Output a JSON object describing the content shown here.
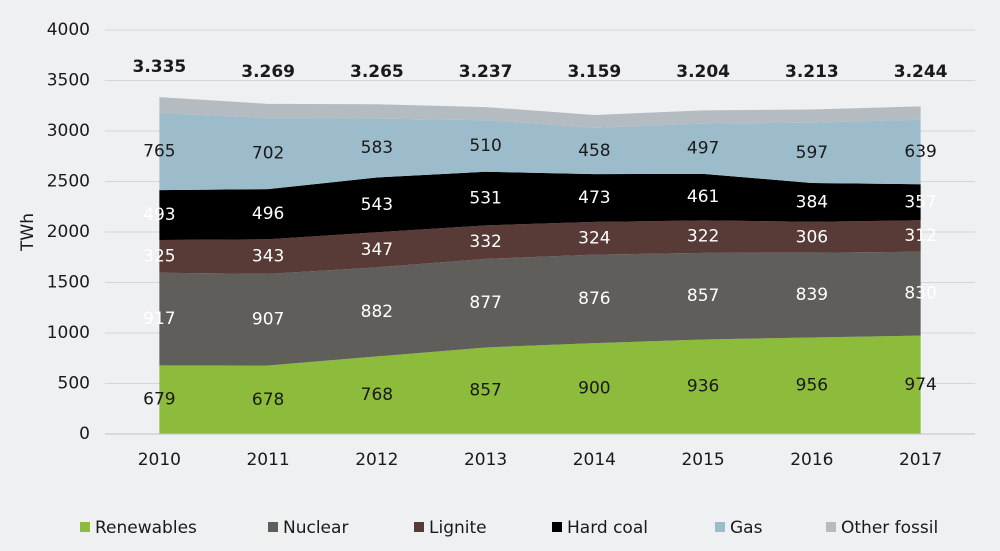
{
  "chart_data": {
    "type": "stacked_area",
    "y_label": "TWh",
    "categories": [
      "2010",
      "2011",
      "2012",
      "2013",
      "2014",
      "2015",
      "2016",
      "2017"
    ],
    "series": [
      {
        "name": "Renewables",
        "color": "#8dbb3c",
        "values": [
          679,
          678,
          768,
          857,
          900,
          936,
          956,
          974
        ]
      },
      {
        "name": "Nuclear",
        "color": "#5f5e5a",
        "values": [
          917,
          907,
          882,
          877,
          876,
          857,
          839,
          830
        ]
      },
      {
        "name": "Lignite",
        "color": "#583a36",
        "values": [
          325,
          343,
          347,
          332,
          324,
          322,
          306,
          312
        ]
      },
      {
        "name": "Hard coal",
        "color": "#000000",
        "values": [
          493,
          496,
          543,
          531,
          473,
          461,
          384,
          357
        ]
      },
      {
        "name": "Gas",
        "color": "#9dbccb",
        "values": [
          765,
          702,
          583,
          510,
          458,
          497,
          597,
          639
        ]
      },
      {
        "name": "Other fossil",
        "color": "#b4bcc2",
        "values": [
          156,
          143,
          142,
          130,
          128,
          131,
          131,
          132
        ]
      }
    ],
    "labeled_series": [
      0,
      1,
      2,
      3,
      4
    ],
    "totals": {
      "values": [
        3335,
        3269,
        3265,
        3237,
        3159,
        3204,
        3213,
        3244
      ],
      "value_labels": [
        "3.335",
        "3.269",
        "3.265",
        "3.237",
        "3.159",
        "3.204",
        "3.213",
        "3.244"
      ]
    },
    "ylim": [
      0,
      4000
    ],
    "yticks": [
      0,
      500,
      1000,
      1500,
      2000,
      2500,
      3000,
      3500,
      4000
    ],
    "grid": true
  }
}
